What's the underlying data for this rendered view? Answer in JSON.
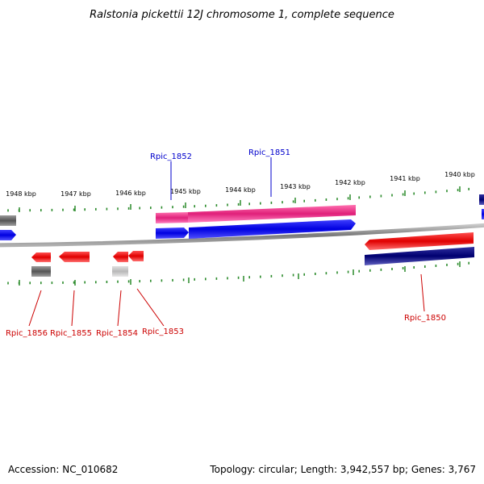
{
  "title": "Ralstonia pickettii 12J chromosome 1, complete sequence",
  "footer": {
    "accession": "Accession: NC_010682",
    "summary": "Topology: circular; Length: 3,942,557 bp; Genes: 3,767"
  },
  "scale": {
    "unit": "kbp",
    "ticks": [
      "1948 kbp",
      "1947 kbp",
      "1946 kbp",
      "1945 kbp",
      "1944 kbp",
      "1943 kbp",
      "1942 kbp",
      "1941 kbp",
      "1940 kbp"
    ]
  },
  "genes": {
    "forward": [
      "Rpic_1852",
      "Rpic_1851"
    ],
    "reverse": [
      "Rpic_1856",
      "Rpic_1855",
      "Rpic_1854",
      "Rpic_1853",
      "Rpic_1850"
    ]
  },
  "colors": {
    "forward_label": "#0000cc",
    "reverse_label": "#cc0000",
    "tick": "#2a8a2a",
    "backbone": "#8a8a8a",
    "gene_red": "#e01010",
    "gene_blue": "#0000e0",
    "gene_magenta": "#e0207a",
    "gene_navy": "#000070",
    "gene_gray": "#606060",
    "gene_lightgray": "#c0c0c0"
  }
}
